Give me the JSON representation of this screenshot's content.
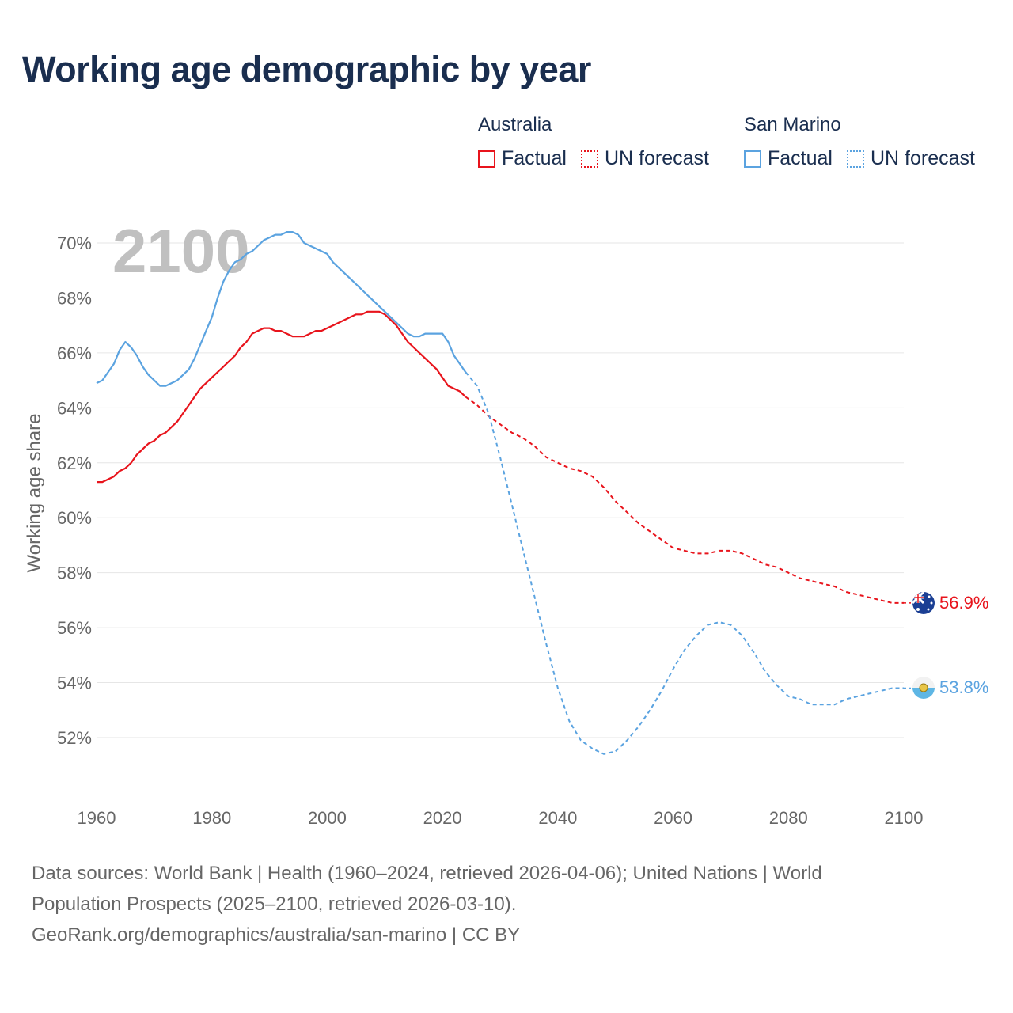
{
  "title": "Working age demographic by year",
  "legend": [
    {
      "group": "Australia",
      "factual_label": "Factual",
      "forecast_label": "UN forecast",
      "color": "#e8141c"
    },
    {
      "group": "San Marino",
      "factual_label": "Factual",
      "forecast_label": "UN forecast",
      "color": "#5ba3e0"
    }
  ],
  "year_watermark": "2100",
  "footer": {
    "line1": "Data sources: World Bank | Health (1960–2024, retrieved 2026-04-06); United Nations | World",
    "line2": "Population Prospects (2025–2100, retrieved 2026-03-10).",
    "line3": "GeoRank.org/demographics/australia/san-marino | CC BY"
  },
  "chart_data": {
    "type": "line",
    "title": "Working age demographic by year",
    "xlabel": "",
    "ylabel": "Working age share",
    "xlim": [
      1960,
      2100
    ],
    "ylim": [
      50,
      70.8
    ],
    "x_ticks": [
      1960,
      1980,
      2000,
      2020,
      2040,
      2060,
      2080,
      2100
    ],
    "y_ticks": [
      52,
      54,
      56,
      58,
      60,
      62,
      64,
      66,
      68,
      70
    ],
    "y_tick_labels": [
      "52%",
      "54%",
      "56%",
      "58%",
      "60%",
      "62%",
      "64%",
      "66%",
      "68%",
      "70%"
    ],
    "grid": true,
    "series": [
      {
        "name": "Australia",
        "color": "#e8141c",
        "end_label": "56.9%",
        "flag": "australia-flag",
        "factual": {
          "x": [
            1960,
            1961,
            1962,
            1963,
            1964,
            1965,
            1966,
            1967,
            1968,
            1969,
            1970,
            1971,
            1972,
            1973,
            1974,
            1975,
            1976,
            1977,
            1978,
            1979,
            1980,
            1981,
            1982,
            1983,
            1984,
            1985,
            1986,
            1987,
            1988,
            1989,
            1990,
            1991,
            1992,
            1993,
            1994,
            1995,
            1996,
            1997,
            1998,
            1999,
            2000,
            2001,
            2002,
            2003,
            2004,
            2005,
            2006,
            2007,
            2008,
            2009,
            2010,
            2011,
            2012,
            2013,
            2014,
            2015,
            2016,
            2017,
            2018,
            2019,
            2020,
            2021,
            2022,
            2023,
            2024
          ],
          "y": [
            61.3,
            61.3,
            61.4,
            61.5,
            61.7,
            61.8,
            62.0,
            62.3,
            62.5,
            62.7,
            62.8,
            63.0,
            63.1,
            63.3,
            63.5,
            63.8,
            64.1,
            64.4,
            64.7,
            64.9,
            65.1,
            65.3,
            65.5,
            65.7,
            65.9,
            66.2,
            66.4,
            66.7,
            66.8,
            66.9,
            66.9,
            66.8,
            66.8,
            66.7,
            66.6,
            66.6,
            66.6,
            66.7,
            66.8,
            66.8,
            66.9,
            67.0,
            67.1,
            67.2,
            67.3,
            67.4,
            67.4,
            67.5,
            67.5,
            67.5,
            67.4,
            67.2,
            67.0,
            66.7,
            66.4,
            66.2,
            66.0,
            65.8,
            65.6,
            65.4,
            65.1,
            64.8,
            64.7,
            64.6,
            64.4
          ]
        },
        "forecast": {
          "x": [
            2024,
            2026,
            2028,
            2030,
            2032,
            2034,
            2036,
            2038,
            2040,
            2042,
            2044,
            2046,
            2048,
            2050,
            2052,
            2054,
            2056,
            2058,
            2060,
            2062,
            2064,
            2066,
            2068,
            2070,
            2072,
            2074,
            2076,
            2078,
            2080,
            2082,
            2084,
            2086,
            2088,
            2090,
            2092,
            2094,
            2096,
            2098,
            2100
          ],
          "y": [
            64.4,
            64.1,
            63.7,
            63.4,
            63.1,
            62.9,
            62.6,
            62.2,
            62.0,
            61.8,
            61.7,
            61.5,
            61.1,
            60.6,
            60.2,
            59.8,
            59.5,
            59.2,
            58.9,
            58.8,
            58.7,
            58.7,
            58.8,
            58.8,
            58.7,
            58.5,
            58.3,
            58.2,
            58.0,
            57.8,
            57.7,
            57.6,
            57.5,
            57.3,
            57.2,
            57.1,
            57.0,
            56.9,
            56.9
          ]
        }
      },
      {
        "name": "San Marino",
        "color": "#5ba3e0",
        "end_label": "53.8%",
        "flag": "san-marino-flag",
        "factual": {
          "x": [
            1960,
            1961,
            1962,
            1963,
            1964,
            1965,
            1966,
            1967,
            1968,
            1969,
            1970,
            1971,
            1972,
            1973,
            1974,
            1975,
            1976,
            1977,
            1978,
            1979,
            1980,
            1981,
            1982,
            1983,
            1984,
            1985,
            1986,
            1987,
            1988,
            1989,
            1990,
            1991,
            1992,
            1993,
            1994,
            1995,
            1996,
            1997,
            1998,
            1999,
            2000,
            2001,
            2002,
            2003,
            2004,
            2005,
            2006,
            2007,
            2008,
            2009,
            2010,
            2011,
            2012,
            2013,
            2014,
            2015,
            2016,
            2017,
            2018,
            2019,
            2020,
            2021,
            2022,
            2023,
            2024
          ],
          "y": [
            64.9,
            65.0,
            65.3,
            65.6,
            66.1,
            66.4,
            66.2,
            65.9,
            65.5,
            65.2,
            65.0,
            64.8,
            64.8,
            64.9,
            65.0,
            65.2,
            65.4,
            65.8,
            66.3,
            66.8,
            67.3,
            68.0,
            68.6,
            69.0,
            69.3,
            69.4,
            69.6,
            69.7,
            69.9,
            70.1,
            70.2,
            70.3,
            70.3,
            70.4,
            70.4,
            70.3,
            70.0,
            69.9,
            69.8,
            69.7,
            69.6,
            69.3,
            69.1,
            68.9,
            68.7,
            68.5,
            68.3,
            68.1,
            67.9,
            67.7,
            67.5,
            67.3,
            67.1,
            66.9,
            66.7,
            66.6,
            66.6,
            66.7,
            66.7,
            66.7,
            66.7,
            66.4,
            65.9,
            65.6,
            65.3
          ]
        },
        "forecast": {
          "x": [
            2024,
            2026,
            2028,
            2030,
            2032,
            2034,
            2036,
            2038,
            2040,
            2042,
            2044,
            2046,
            2048,
            2050,
            2052,
            2054,
            2056,
            2058,
            2060,
            2062,
            2064,
            2066,
            2068,
            2070,
            2072,
            2074,
            2076,
            2078,
            2080,
            2082,
            2084,
            2086,
            2088,
            2090,
            2092,
            2094,
            2096,
            2098,
            2100
          ],
          "y": [
            65.3,
            64.8,
            63.8,
            62.2,
            60.5,
            58.8,
            57.1,
            55.4,
            53.8,
            52.6,
            51.9,
            51.6,
            51.4,
            51.5,
            51.9,
            52.4,
            53.0,
            53.7,
            54.5,
            55.2,
            55.7,
            56.1,
            56.2,
            56.1,
            55.7,
            55.1,
            54.4,
            53.9,
            53.5,
            53.4,
            53.2,
            53.2,
            53.2,
            53.4,
            53.5,
            53.6,
            53.7,
            53.8,
            53.8
          ]
        }
      }
    ]
  }
}
